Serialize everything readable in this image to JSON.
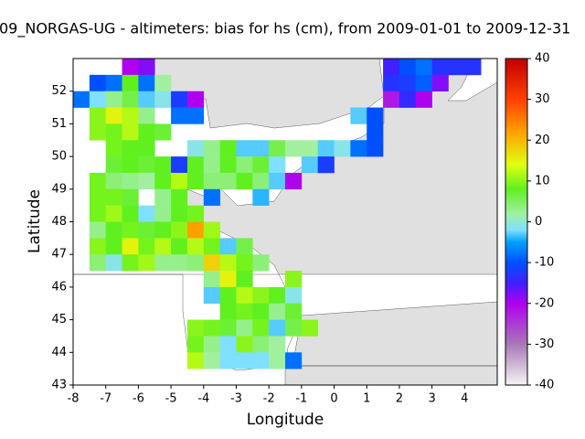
{
  "chart_data": {
    "type": "heatmap",
    "title": "09_NORGAS-UG - altimeters: bias for hs (cm), from 2009-01-01 to 2009-12-31",
    "x_label": "Longitude",
    "y_label": "Latitude",
    "xlim": [
      -8,
      5
    ],
    "ylim": [
      43,
      53
    ],
    "xticks": [
      -8,
      -7,
      -6,
      -5,
      -4,
      -3,
      -2,
      -1,
      0,
      1,
      2,
      3,
      4
    ],
    "yticks": [
      43,
      44,
      45,
      46,
      47,
      48,
      49,
      50,
      51,
      52
    ],
    "zlim": [
      -40,
      40
    ],
    "zticks": [
      -40,
      -30,
      -20,
      -10,
      0,
      10,
      20,
      30,
      40
    ],
    "colorscale": [
      [
        -40,
        "#f5f5f5"
      ],
      [
        -30,
        "#a878b8"
      ],
      [
        -20,
        "#b000f0"
      ],
      [
        -15,
        "#4020ff"
      ],
      [
        -10,
        "#0050ff"
      ],
      [
        -5,
        "#00a0ff"
      ],
      [
        -2,
        "#80e0ff"
      ],
      [
        2,
        "#a0f0a0"
      ],
      [
        8,
        "#60f020"
      ],
      [
        14,
        "#e0ff10"
      ],
      [
        22,
        "#ffa000"
      ],
      [
        30,
        "#ff4000"
      ],
      [
        40,
        "#c00000"
      ]
    ],
    "cells": {
      "lon": [
        -6.5,
        -6,
        1.5,
        2,
        2.5,
        3,
        3.5,
        4,
        -7.5,
        -7,
        -6.5,
        -6,
        -5.5,
        1.5,
        2,
        2.5,
        3,
        -8,
        -7.5,
        -7,
        -6.5,
        -6,
        -5.5,
        -5,
        -4.5,
        1.5,
        2,
        2.5,
        -7.5,
        -7,
        -6.5,
        -6,
        -5,
        -4.5,
        0.5,
        1,
        -7.5,
        -7,
        -6.5,
        -6,
        -5.5,
        1,
        -7,
        -6.5,
        -6,
        -4.5,
        -4,
        -3.5,
        -3,
        -2.5,
        -2,
        -1.5,
        -1,
        -0.5,
        0,
        0.5,
        1,
        -7,
        -6.5,
        -6,
        -5.5,
        -5,
        -4.5,
        -4,
        -3.5,
        -3,
        -2.5,
        -2,
        -1,
        -0.5,
        -7.5,
        -7,
        -6.5,
        -6,
        -5.5,
        -5,
        -4.5,
        -4,
        -3.5,
        -3,
        -2.5,
        -2,
        -1.5,
        -7.5,
        -7,
        -6.5,
        -5.5,
        -5,
        -4,
        -2.5,
        -7.5,
        -7,
        -6.5,
        -6,
        -5.5,
        -5,
        -4.5,
        -7.5,
        -7,
        -6.5,
        -6,
        -5.5,
        -5,
        -4.5,
        -4,
        -7.5,
        -7,
        -6.5,
        -6,
        -5.5,
        -5,
        -4.5,
        -4,
        -3.5,
        -3,
        -7.5,
        -7,
        -6.5,
        -6,
        -5.5,
        -5,
        -4.5,
        -4,
        -3.5,
        -3,
        -2.5,
        -4,
        -3.5,
        -3,
        -1.5,
        -4,
        -3.5,
        -3,
        -2.5,
        -2,
        -1.5,
        -3.5,
        -3,
        -2.5,
        -2,
        -1.5,
        -4.5,
        -4,
        -3.5,
        -3,
        -2.5,
        -2,
        -1.5,
        -1,
        -4.5,
        -4,
        -3.5,
        -3,
        -2.5,
        -2,
        -4.5,
        -4,
        -3.5,
        -3,
        -2.5,
        -2,
        -1.5
      ],
      "lat": [
        52.5,
        52.5,
        52.5,
        52.5,
        52.5,
        52.5,
        52.5,
        52.5,
        52,
        52,
        52,
        52,
        52,
        52,
        52,
        52,
        52,
        51.5,
        51.5,
        51.5,
        51.5,
        51.5,
        51.5,
        51.5,
        51.5,
        51.5,
        51.5,
        51.5,
        51,
        51,
        51,
        51,
        51,
        51,
        51,
        51,
        50.5,
        50.5,
        50.5,
        50.5,
        50.5,
        50.5,
        50,
        50,
        50,
        50,
        50,
        50,
        50,
        50,
        50,
        50,
        50,
        50,
        50,
        50,
        50,
        49.5,
        49.5,
        49.5,
        49.5,
        49.5,
        49.5,
        49.5,
        49.5,
        49.5,
        49.5,
        49.5,
        49.5,
        49.5,
        49,
        49,
        49,
        49,
        49,
        49,
        49,
        49,
        49,
        49,
        49,
        49,
        49,
        48.5,
        48.5,
        48.5,
        48.5,
        48.5,
        48.5,
        48.5,
        48,
        48,
        48,
        48,
        48,
        48,
        48,
        47.5,
        47.5,
        47.5,
        47.5,
        47.5,
        47.5,
        47.5,
        47.5,
        47,
        47,
        47,
        47,
        47,
        47,
        47,
        47,
        47,
        47,
        46.5,
        46.5,
        46.5,
        46.5,
        46.5,
        46.5,
        46.5,
        46.5,
        46.5,
        46.5,
        46.5,
        46,
        46,
        46,
        46,
        45.5,
        45.5,
        45.5,
        45.5,
        45.5,
        45.5,
        45,
        45,
        45,
        45,
        45,
        44.5,
        44.5,
        44.5,
        44.5,
        44.5,
        44.5,
        44.5,
        44.5,
        44,
        44,
        44,
        44,
        44,
        44,
        43.5,
        43.5,
        43.5,
        43.5,
        43.5,
        43.5,
        43.5
      ],
      "values": [
        -20,
        -18,
        -15,
        -10,
        -8,
        -13,
        -13,
        -13,
        -10,
        -8,
        8,
        -8,
        2,
        -13,
        -12,
        -9,
        -18,
        -8,
        -2,
        3,
        6,
        -3,
        -1,
        -12,
        -20,
        -22,
        -14,
        -20,
        10,
        15,
        12,
        3,
        -8,
        -8,
        -3,
        -10,
        10,
        9,
        12,
        8,
        7,
        -10,
        9,
        8,
        8,
        -1,
        3,
        8,
        -3,
        -3,
        6,
        2,
        2,
        -3,
        -1,
        -8,
        -10,
        7,
        8,
        7,
        8,
        -12,
        8,
        3,
        8,
        4,
        7,
        -2,
        -3,
        -12,
        9,
        4,
        3,
        2,
        8,
        12,
        8,
        4,
        4,
        8,
        4,
        -3,
        -20,
        9,
        9,
        7,
        3,
        8,
        -8,
        -4,
        9,
        11,
        8,
        -2,
        3,
        8,
        9,
        3,
        8,
        9,
        7,
        8,
        10,
        22,
        11,
        10,
        8,
        15,
        9,
        12,
        8,
        12,
        9,
        -3,
        6,
        4,
        -1,
        9,
        11,
        3,
        3,
        4,
        18,
        12,
        9,
        4,
        3,
        15,
        8,
        10,
        -3,
        8,
        12,
        10,
        8,
        -1,
        8,
        9,
        8,
        3,
        7,
        10,
        9,
        7,
        3,
        9,
        -3,
        6,
        10,
        9,
        3,
        -2,
        10,
        4,
        2,
        12,
        2,
        -2,
        -2,
        -2,
        2,
        -8
      ]
    }
  }
}
